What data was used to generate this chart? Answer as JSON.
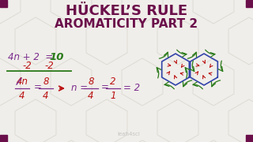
{
  "bg_color": "#f0eeea",
  "hex_color": "#dddbd3",
  "title_line1": "HÜCKEL’S RULE",
  "title_line2": "AROMATICITY PART 2",
  "title_color": "#6b0f4a",
  "corner_color": "#6b0f4a",
  "purple": "#7b2d8e",
  "green": "#2a7a1a",
  "red": "#bb1111",
  "blue": "#3344aa",
  "watermark": "leah4sci",
  "watermark_color": "#bbbbbb"
}
